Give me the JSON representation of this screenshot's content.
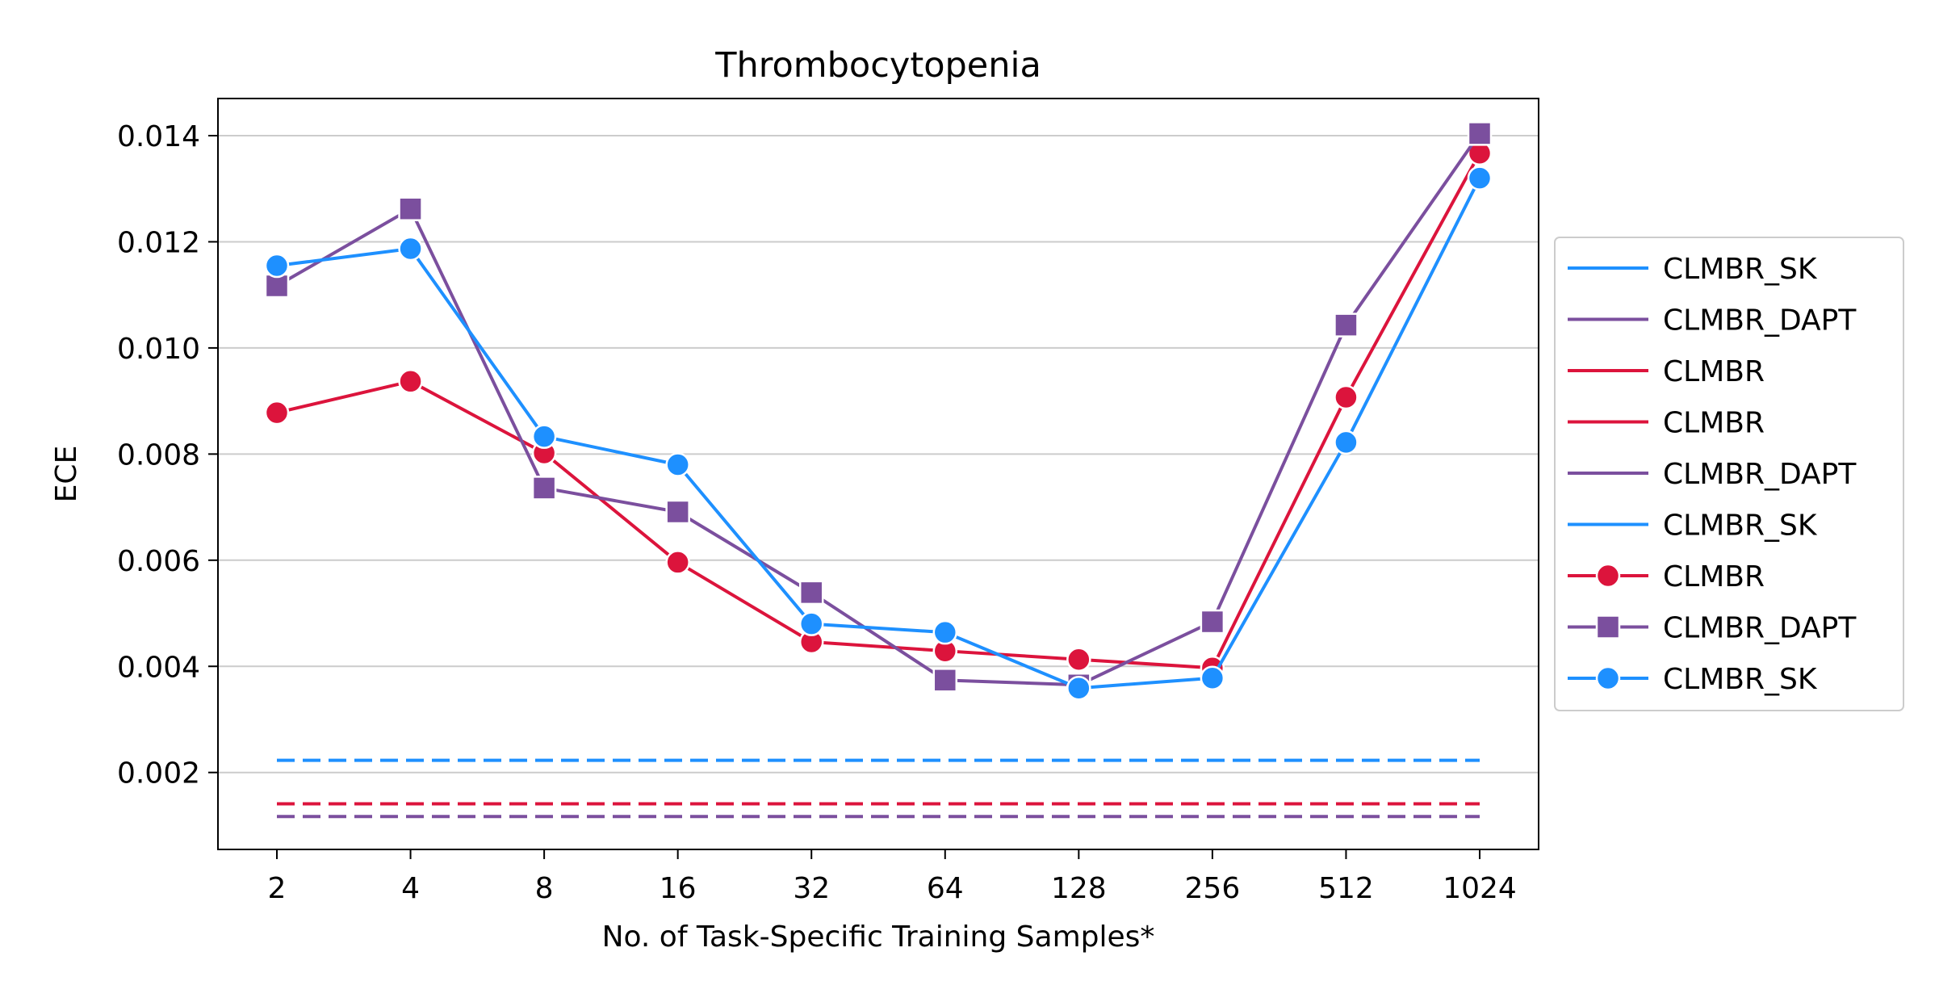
{
  "chart_data": {
    "type": "line",
    "title": "Thrombocytopenia",
    "xlabel": "No. of Task-Specific Training Samples*",
    "ylabel": "ECE",
    "categories": [
      "2",
      "4",
      "8",
      "16",
      "32",
      "64",
      "128",
      "256",
      "512",
      "1024"
    ],
    "ylim": [
      0.00055,
      0.0147
    ],
    "yticks": [
      0.002,
      0.004,
      0.006,
      0.008,
      0.01,
      0.012,
      0.014
    ],
    "ytick_labels": [
      "0.002",
      "0.004",
      "0.006",
      "0.008",
      "0.010",
      "0.012",
      "0.014"
    ],
    "grid": "horizontal",
    "legend_position": "right-outside",
    "series": [
      {
        "name": "CLMBR",
        "color": "#dc143c",
        "marker": "circle",
        "values": [
          0.00878,
          0.00937,
          0.00802,
          0.00596,
          0.00446,
          0.00429,
          0.00413,
          0.00397,
          0.00907,
          0.01367
        ]
      },
      {
        "name": "CLMBR_DAPT",
        "color": "#7b4f9e",
        "marker": "square",
        "values": [
          0.01117,
          0.01262,
          0.00736,
          0.00691,
          0.00539,
          0.00374,
          0.00365,
          0.00484,
          0.01043,
          0.01404
        ]
      },
      {
        "name": "CLMBR_SK",
        "color": "#1e90ff",
        "marker": "circle",
        "values": [
          0.01155,
          0.01187,
          0.00833,
          0.0078,
          0.0048,
          0.00464,
          0.00359,
          0.00378,
          0.00822,
          0.0132
        ]
      }
    ],
    "baselines": [
      {
        "name": "CLMBR_SK",
        "color": "#1e90ff",
        "value": 0.00223
      },
      {
        "name": "CLMBR",
        "color": "#dc143c",
        "value": 0.00141
      },
      {
        "name": "CLMBR_DAPT",
        "color": "#7b4f9e",
        "value": 0.00117
      }
    ],
    "legend": [
      {
        "label": "CLMBR_SK",
        "color": "#1e90ff",
        "marker": "none"
      },
      {
        "label": "CLMBR_DAPT",
        "color": "#7b4f9e",
        "marker": "none"
      },
      {
        "label": "CLMBR",
        "color": "#dc143c",
        "marker": "none"
      },
      {
        "label": "CLMBR",
        "color": "#dc143c",
        "marker": "none"
      },
      {
        "label": "CLMBR_DAPT",
        "color": "#7b4f9e",
        "marker": "none"
      },
      {
        "label": "CLMBR_SK",
        "color": "#1e90ff",
        "marker": "none"
      },
      {
        "label": "CLMBR",
        "color": "#dc143c",
        "marker": "circle"
      },
      {
        "label": "CLMBR_DAPT",
        "color": "#7b4f9e",
        "marker": "square"
      },
      {
        "label": "CLMBR_SK",
        "color": "#1e90ff",
        "marker": "circle"
      }
    ]
  }
}
